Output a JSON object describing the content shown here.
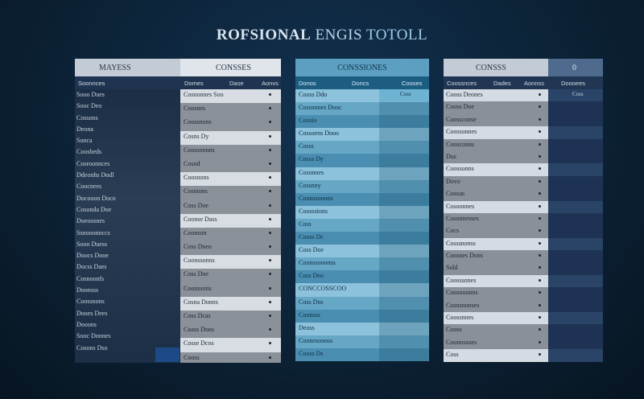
{
  "title": {
    "part1": "ROFSIONAL",
    "part2": "ENGIS",
    "part3": "TOTOLL"
  },
  "panel1": {
    "header_left": "MAYESS",
    "header_right": "CONSSES",
    "sub": [
      "Soonnces",
      "Domes",
      "Dase",
      "Aonvs"
    ],
    "left_rows": [
      "Sooo Dues",
      "Sooc Deo",
      "Cossons",
      "Deona",
      "Sunca",
      "Coosbeds",
      "Cosroonnces",
      "Ddeonhs Dodl",
      "Coocnees",
      "Docooon Doco",
      "Cosonda Doe",
      "Doeoosnes",
      "Ssnooonnccs",
      "Sooo Duess",
      "Doocs Dooe",
      "Docss Daes",
      "Cosnoonfs",
      "Doonsss",
      "Coossnons",
      "Dooes Dees",
      "Dooons",
      "Sooc Donnes",
      "Cosons Dso"
    ],
    "right_rows": [
      "Cosnonnes Soo",
      "Coosnes",
      "Coossnons",
      "Cosns Dy",
      "Coossoonns",
      "Cosnd",
      "Coosnons",
      "Cosnions",
      "Coss Doe",
      "Coonse Dass",
      "Coonson",
      "Coss Dneo",
      "Coonssonns",
      "Coss Doe",
      "Coonssons",
      "Cosna Donns",
      "Coss Dcas",
      "Coass Dons",
      "Cosse Dcos",
      "Cooss"
    ]
  },
  "panel2": {
    "header": "CONSSIONES",
    "sub": [
      "Donos",
      "Doncs",
      "Cooses"
    ],
    "right_top": "Coss",
    "rows": [
      "Cooss Ddo",
      "Cossonnes Dooc",
      "Coosio",
      "Cossoens Dooo",
      "Cosss",
      "Cossa Dy",
      "Cosonnes",
      "Cossnny",
      "Coonssoonns",
      "Coosssions",
      "Coss",
      "Cooss Dc",
      "Coss Doe",
      "Coonssooonss",
      "Coss Deo",
      "CONCCOSSCOO",
      "Coss Dns",
      "Coonsss",
      "Deoss",
      "Coonesoooss",
      "Cooss Ds"
    ]
  },
  "panel3": {
    "header_left": "CONSSS",
    "header_right": "0",
    "sub": [
      "Coossnces",
      "Dades",
      "Aonnss",
      "Doooees"
    ],
    "right_top": "Coss",
    "rows": [
      "Cooss Deones",
      "Cooss Doe",
      "Coossconse",
      "Coossonnes",
      "Coosconns",
      "Dus",
      "Coossonns",
      "Dovo",
      "Coosas",
      "Cosoonnes",
      "Cosonnesses",
      "Cocs",
      "Cosssnonss",
      "Coosnes Dons",
      "Sold",
      "Coosssones",
      "Coosnoonns",
      "Coossnonses",
      "Coossnnes",
      "Cooss",
      "Coonossoes",
      "Coss"
    ]
  }
}
